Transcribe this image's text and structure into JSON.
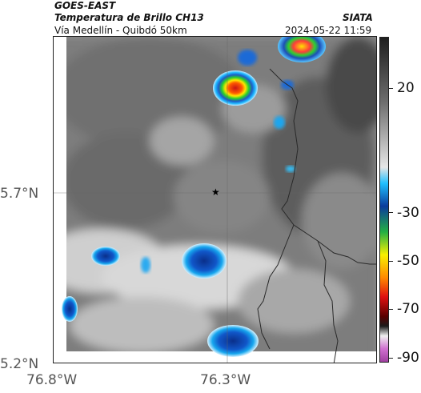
{
  "header": {
    "satellite": "GOES-EAST",
    "product": "Temperatura de Brillo CH13",
    "org": "SIATA",
    "region": "Vía Medellín - Quibdó 50km",
    "datetime": "2024-05-22 11:59"
  },
  "map": {
    "lat_ticks": [
      "5.7°N",
      "5.2°N"
    ],
    "lon_ticks": [
      "76.8°W",
      "76.3°W"
    ],
    "marker": "★",
    "has_grid": true,
    "has_borders": true
  },
  "colorbar": {
    "labels": [
      "20",
      "-30",
      "-50",
      "-70",
      "-90"
    ],
    "units_hint": "°C",
    "gradient_colors": [
      "#1f1f1f",
      "#444444",
      "#777777",
      "#aaaaaa",
      "#d8d8d8",
      "#00b7ff",
      "#0044aa",
      "#22aa44",
      "#33dd33",
      "#ffee00",
      "#ff9900",
      "#ff2200",
      "#990000",
      "#222222",
      "#ffffff",
      "#cc66cc"
    ]
  },
  "colors": {
    "cloud_gray": "#888888",
    "cold_cloud_blue": "#0a4db8",
    "coldest_red": "#e11b1b",
    "warm_cloud_yellow": "#f7e03a",
    "border_line": "#2a2a2a"
  }
}
